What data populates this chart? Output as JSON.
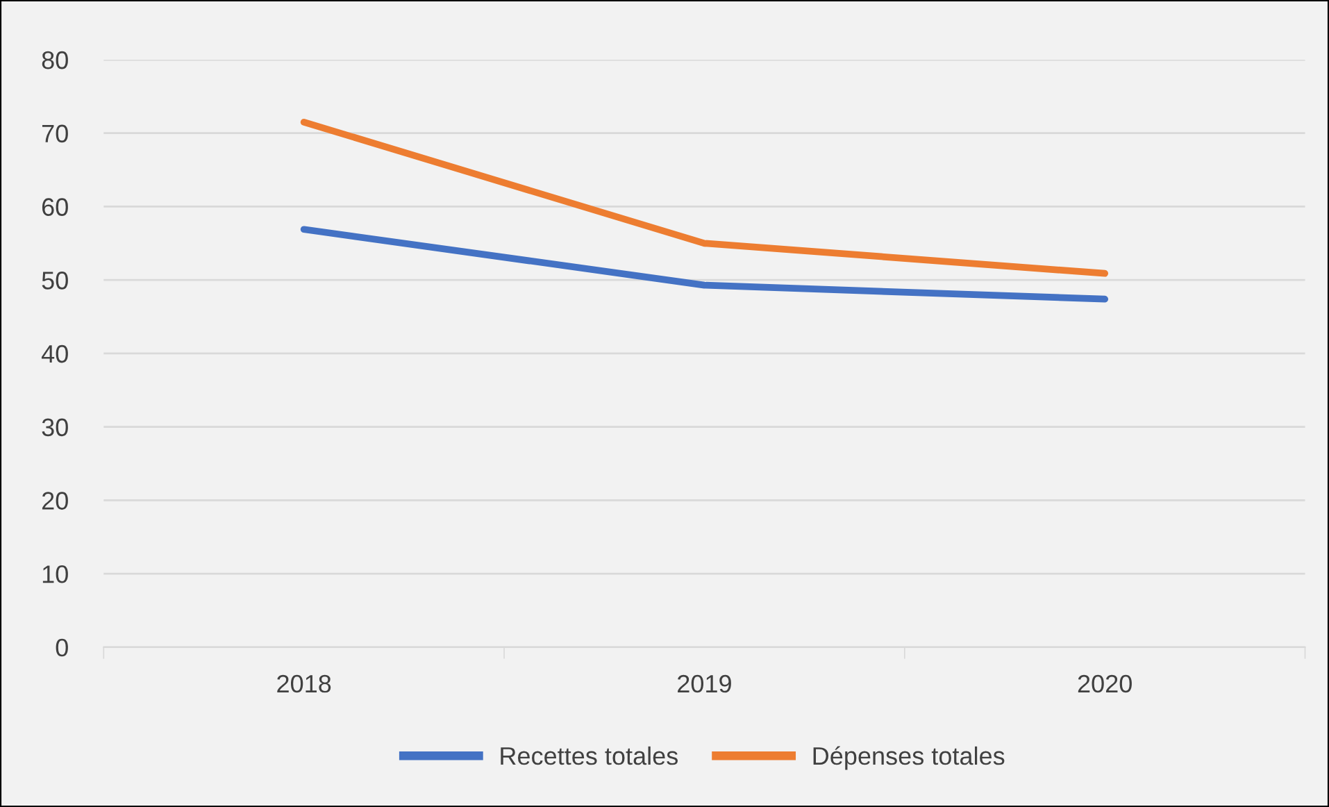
{
  "chart_data": {
    "type": "line",
    "categories": [
      "2018",
      "2019",
      "2020"
    ],
    "series": [
      {
        "name": "Recettes totales",
        "color": "#4472c4",
        "values": [
          56.9,
          49.3,
          47.4
        ]
      },
      {
        "name": "Dépenses totales",
        "color": "#ed7d31",
        "values": [
          71.5,
          55.0,
          50.9
        ]
      }
    ],
    "ylim": [
      0,
      80
    ],
    "yticks": [
      0,
      10,
      20,
      30,
      40,
      50,
      60,
      70,
      80
    ],
    "grid": "y",
    "legend": "bottom",
    "marker": "none",
    "line_style": "solid"
  }
}
